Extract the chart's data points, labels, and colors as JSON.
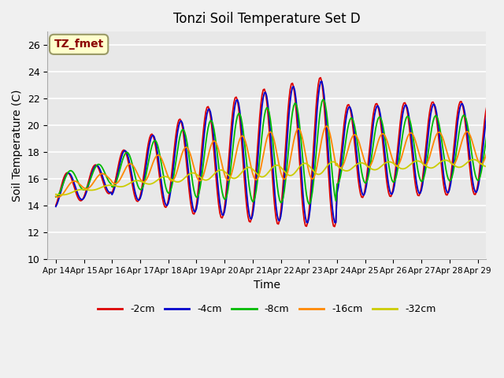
{
  "title": "Tonzi Soil Temperature Set D",
  "xlabel": "Time",
  "ylabel": "Soil Temperature (C)",
  "ylim": [
    10,
    27
  ],
  "yticks": [
    10,
    12,
    14,
    16,
    18,
    20,
    22,
    24,
    26
  ],
  "legend_label": "TZ_fmet",
  "legend_text_color": "#8b0000",
  "legend_box_color": "#ffffcc",
  "legend_box_edge": "#999966",
  "fig_bg_color": "#f0f0f0",
  "plot_bg_color": "#e8e8e8",
  "grid_color": "#ffffff",
  "line_colors": {
    "-2cm": "#dd0000",
    "-4cm": "#0000cc",
    "-8cm": "#00bb00",
    "-16cm": "#ff8800",
    "-32cm": "#cccc00"
  },
  "series_labels": [
    "-2cm",
    "-4cm",
    "-8cm",
    "-16cm",
    "-32cm"
  ],
  "x_tick_labels": [
    "Apr 14",
    "Apr 15",
    "Apr 16",
    "Apr 17",
    "Apr 18",
    "Apr 19",
    "Apr 20",
    "Apr 21",
    "Apr 22",
    "Apr 23",
    "Apr 24",
    "Apr 25",
    "Apr 26",
    "Apr 27",
    "Apr 28",
    "Apr 29"
  ],
  "num_days": 16,
  "points_per_day": 24
}
